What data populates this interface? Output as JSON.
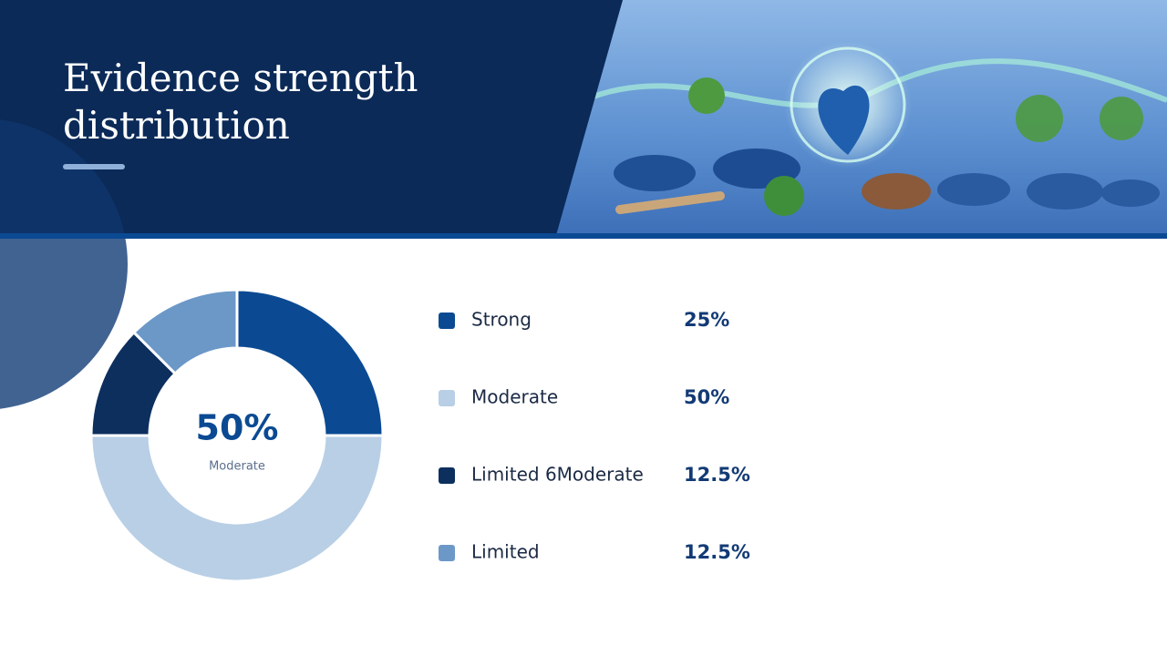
{
  "chart_data": {
    "type": "pie",
    "donut": true,
    "title": "Evidence strength distribution",
    "categories": [
      "Strong",
      "Moderate",
      "Limited 6Moderate",
      "Limited"
    ],
    "values": [
      25,
      50,
      12.5,
      12.5
    ],
    "value_labels": [
      "25%",
      "50%",
      "12.5%",
      "12.5%"
    ],
    "colors": [
      "#0b4a93",
      "#b8cfe6",
      "#0d2f5e",
      "#6c98c8"
    ],
    "highlight": 1
  }
}
